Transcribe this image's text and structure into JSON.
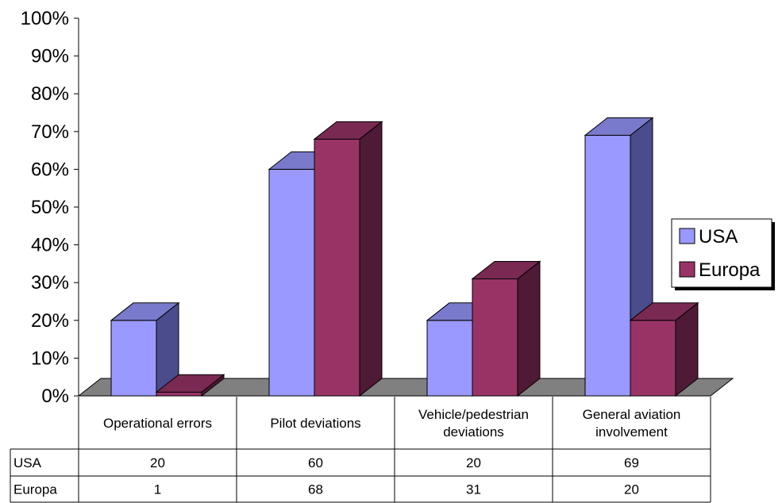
{
  "chart_data": {
    "type": "bar",
    "chart_style": "3d-clustered-column-with-data-table",
    "categories": [
      [
        "Operational errors"
      ],
      [
        "Pilot deviations"
      ],
      [
        "Vehicle/pedestrian",
        "deviations"
      ],
      [
        "General aviation",
        "involvement"
      ]
    ],
    "series": [
      {
        "name": "USA",
        "values": [
          20,
          60,
          20,
          69
        ],
        "color": "#9999ff",
        "side_color": "#4b4c8c",
        "top_color": "#7a7acc"
      },
      {
        "name": "Europa",
        "values": [
          1,
          68,
          31,
          20
        ],
        "color": "#993366",
        "side_color": "#4f1a35",
        "top_color": "#7a2a52"
      }
    ],
    "ylim": [
      0,
      100
    ],
    "y_ticks": [
      "0%",
      "10%",
      "20%",
      "30%",
      "40%",
      "50%",
      "60%",
      "70%",
      "80%",
      "90%",
      "100%"
    ],
    "floor_color": "#808080",
    "legend_position": "right",
    "data_table": true
  }
}
